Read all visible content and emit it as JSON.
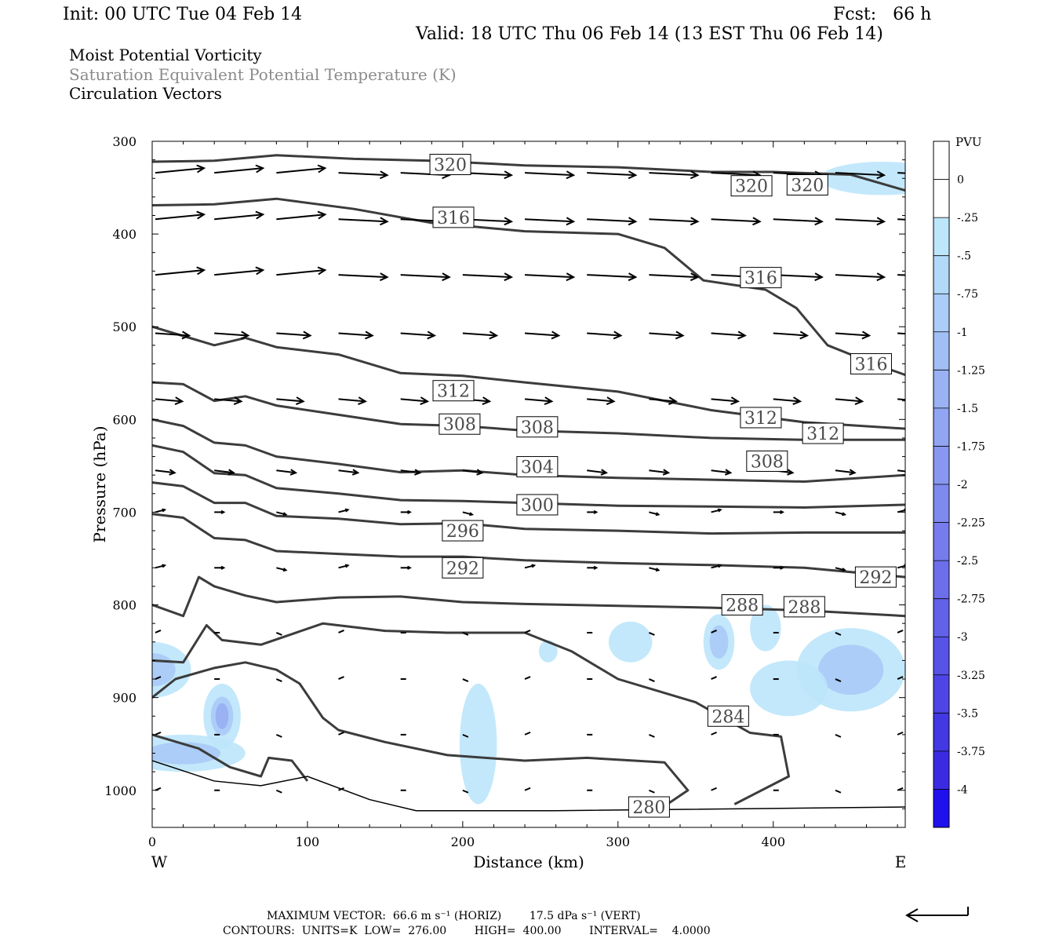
{
  "header": {
    "init": "Init: 00 UTC Tue 04 Feb 14",
    "fcst": "Fcst:   66 h",
    "valid": "Valid: 18 UTC Thu 06 Feb 14 (13 EST Thu 06 Feb 14)"
  },
  "fields": {
    "line1": "Moist Potential Vorticity",
    "line2": "Saturation Equivalent Potential Temperature (K)",
    "line3": "Circulation Vectors"
  },
  "footer": {
    "max_vector": "MAXIMUM VECTOR:  66.6 m s⁻¹ (HORIZ)        17.5 dPa s⁻¹ (VERT)",
    "contours": "CONTOURS:  UNITS=K  LOW=  276.00        HIGH=  400.00        INTERVAL=    4.0000"
  },
  "chart_data": {
    "type": "cross-section",
    "xlabel": "Distance (km)",
    "ylabel": "Pressure (hPa)",
    "x_ticks": [
      0,
      100,
      200,
      300,
      400
    ],
    "y_ticks": [
      300,
      400,
      500,
      600,
      700,
      800,
      900,
      1000
    ],
    "xlim": [
      0,
      485
    ],
    "ylim": [
      300,
      1040
    ],
    "y_inverted": true,
    "left_label": "W",
    "right_label": "E",
    "colorbar": {
      "unit": "PVU",
      "levels": [
        "0",
        "-.25",
        "-.5",
        "-.75",
        "-1",
        "-1.25",
        "-1.5",
        "-1.75",
        "-2",
        "-2.25",
        "-2.5",
        "-2.75",
        "-3",
        "-3.25",
        "-3.5",
        "-3.75",
        "-4"
      ],
      "colors": [
        "#ffffff",
        "#ffffff",
        "#bde6fb",
        "#b3d9f8",
        "#abcdf7",
        "#a2bff5",
        "#9ab2f4",
        "#91a5f2",
        "#8898f0",
        "#7f8aee",
        "#767cec",
        "#6c6eea",
        "#6261e9",
        "#5853e7",
        "#4e45e6",
        "#4238e4",
        "#3a2be2",
        "#1f10ee"
      ]
    },
    "contours": [
      {
        "label": "320",
        "points": [
          [
            0,
            322
          ],
          [
            40,
            321
          ],
          [
            80,
            315
          ],
          [
            130,
            319
          ],
          [
            180,
            321
          ],
          [
            240,
            326
          ],
          [
            300,
            328
          ],
          [
            360,
            333
          ],
          [
            400,
            333
          ],
          [
            450,
            336
          ],
          [
            485,
            353
          ]
        ],
        "label_pos": [
          [
            192,
            325
          ],
          [
            386,
            348
          ],
          [
            422,
            347
          ]
        ]
      },
      {
        "label": "316",
        "points": [
          [
            0,
            369
          ],
          [
            40,
            368
          ],
          [
            80,
            362
          ],
          [
            130,
            373
          ],
          [
            180,
            388
          ],
          [
            240,
            397
          ],
          [
            300,
            400
          ],
          [
            330,
            415
          ],
          [
            355,
            450
          ],
          [
            375,
            455
          ],
          [
            395,
            460
          ],
          [
            415,
            480
          ],
          [
            435,
            520
          ],
          [
            465,
            540
          ],
          [
            485,
            552
          ]
        ],
        "label_pos": [
          [
            194,
            382
          ],
          [
            392,
            447
          ],
          [
            463,
            540
          ]
        ]
      },
      {
        "label": "312",
        "points": [
          [
            0,
            500
          ],
          [
            20,
            510
          ],
          [
            40,
            520
          ],
          [
            60,
            512
          ],
          [
            80,
            522
          ],
          [
            120,
            530
          ],
          [
            160,
            550
          ],
          [
            200,
            553
          ],
          [
            240,
            560
          ],
          [
            300,
            570
          ],
          [
            360,
            590
          ],
          [
            420,
            603
          ],
          [
            485,
            610
          ]
        ],
        "label_pos": [
          [
            194,
            569
          ],
          [
            392,
            598
          ],
          [
            432,
            615
          ]
        ]
      },
      {
        "label": "308",
        "points": [
          [
            0,
            560
          ],
          [
            20,
            562
          ],
          [
            40,
            580
          ],
          [
            60,
            575
          ],
          [
            80,
            585
          ],
          [
            120,
            595
          ],
          [
            160,
            605
          ],
          [
            200,
            607
          ],
          [
            240,
            612
          ],
          [
            300,
            615
          ],
          [
            360,
            620
          ],
          [
            420,
            622
          ],
          [
            485,
            622
          ]
        ],
        "label_pos": [
          [
            198,
            605
          ],
          [
            248,
            608
          ],
          [
            396,
            645
          ]
        ]
      },
      {
        "label": "304",
        "points": [
          [
            0,
            600
          ],
          [
            20,
            607
          ],
          [
            40,
            625
          ],
          [
            60,
            628
          ],
          [
            80,
            640
          ],
          [
            120,
            648
          ],
          [
            160,
            657
          ],
          [
            200,
            655
          ],
          [
            240,
            660
          ],
          [
            300,
            663
          ],
          [
            360,
            665
          ],
          [
            420,
            667
          ],
          [
            485,
            660
          ]
        ],
        "label_pos": [
          [
            248,
            651
          ]
        ]
      },
      {
        "label": "300",
        "points": [
          [
            0,
            628
          ],
          [
            20,
            635
          ],
          [
            40,
            658
          ],
          [
            60,
            660
          ],
          [
            80,
            674
          ],
          [
            120,
            680
          ],
          [
            160,
            687
          ],
          [
            200,
            688
          ],
          [
            240,
            690
          ],
          [
            300,
            693
          ],
          [
            360,
            694
          ],
          [
            420,
            695
          ],
          [
            485,
            692
          ]
        ],
        "label_pos": [
          [
            248,
            692
          ]
        ]
      },
      {
        "label": "296",
        "points": [
          [
            0,
            668
          ],
          [
            20,
            672
          ],
          [
            40,
            690
          ],
          [
            60,
            690
          ],
          [
            80,
            704
          ],
          [
            120,
            707
          ],
          [
            160,
            713
          ],
          [
            200,
            712
          ],
          [
            240,
            718
          ],
          [
            300,
            720
          ],
          [
            360,
            723
          ],
          [
            420,
            722
          ],
          [
            485,
            722
          ]
        ],
        "label_pos": [
          [
            200,
            720
          ]
        ]
      },
      {
        "label": "292",
        "points": [
          [
            0,
            702
          ],
          [
            20,
            706
          ],
          [
            40,
            728
          ],
          [
            60,
            730
          ],
          [
            80,
            742
          ],
          [
            120,
            745
          ],
          [
            160,
            748
          ],
          [
            200,
            748
          ],
          [
            240,
            752
          ],
          [
            300,
            755
          ],
          [
            360,
            757
          ],
          [
            420,
            760
          ],
          [
            485,
            770
          ]
        ],
        "label_pos": [
          [
            200,
            760
          ],
          [
            466,
            770
          ]
        ]
      },
      {
        "label": "288",
        "points": [
          [
            0,
            800
          ],
          [
            20,
            812
          ],
          [
            30,
            770
          ],
          [
            40,
            780
          ],
          [
            60,
            790
          ],
          [
            80,
            797
          ],
          [
            120,
            792
          ],
          [
            160,
            791
          ],
          [
            200,
            797
          ],
          [
            240,
            799
          ],
          [
            300,
            801
          ],
          [
            360,
            803
          ],
          [
            420,
            806
          ],
          [
            485,
            812
          ]
        ],
        "label_pos": [
          [
            380,
            800
          ],
          [
            420,
            802
          ]
        ]
      },
      {
        "label": "284",
        "points": [
          [
            0,
            860
          ],
          [
            20,
            862
          ],
          [
            35,
            822
          ],
          [
            45,
            838
          ],
          [
            70,
            843
          ],
          [
            110,
            820
          ],
          [
            150,
            828
          ],
          [
            190,
            830
          ],
          [
            240,
            830
          ],
          [
            270,
            850
          ],
          [
            300,
            880
          ],
          [
            350,
            905
          ],
          [
            385,
            938
          ],
          [
            405,
            942
          ],
          [
            410,
            985
          ],
          [
            375,
            1015
          ]
        ],
        "label_pos": [
          [
            371,
            920
          ]
        ]
      },
      {
        "label": "280",
        "points": [
          [
            0,
            900
          ],
          [
            15,
            880
          ],
          [
            40,
            868
          ],
          [
            60,
            862
          ],
          [
            80,
            870
          ],
          [
            95,
            885
          ],
          [
            110,
            922
          ],
          [
            120,
            935
          ],
          [
            150,
            948
          ],
          [
            190,
            962
          ],
          [
            240,
            968
          ],
          [
            280,
            965
          ],
          [
            330,
            970
          ],
          [
            345,
            1000
          ],
          [
            330,
            1017
          ]
        ],
        "label_pos": [
          [
            320,
            1018
          ]
        ]
      },
      {
        "label": "",
        "points": [
          [
            0,
            940
          ],
          [
            30,
            955
          ],
          [
            50,
            975
          ],
          [
            70,
            985
          ],
          [
            75,
            965
          ],
          [
            90,
            968
          ],
          [
            100,
            990
          ]
        ]
      }
    ],
    "pv_shading": [
      {
        "cx": 45,
        "cy": 920,
        "rx": 12,
        "ry": 35,
        "level": 3
      },
      {
        "cx": 0,
        "cy": 870,
        "rx": 25,
        "ry": 30,
        "level": 2
      },
      {
        "cx": 20,
        "cy": 960,
        "rx": 40,
        "ry": 20,
        "level": 2
      },
      {
        "cx": 210,
        "cy": 950,
        "rx": 12,
        "ry": 65,
        "level": 1
      },
      {
        "cx": 255,
        "cy": 850,
        "rx": 6,
        "ry": 12,
        "level": 1
      },
      {
        "cx": 308,
        "cy": 840,
        "rx": 14,
        "ry": 22,
        "level": 1
      },
      {
        "cx": 365,
        "cy": 840,
        "rx": 10,
        "ry": 30,
        "level": 2
      },
      {
        "cx": 395,
        "cy": 825,
        "rx": 10,
        "ry": 25,
        "level": 1
      },
      {
        "cx": 450,
        "cy": 870,
        "rx": 35,
        "ry": 45,
        "level": 2
      },
      {
        "cx": 410,
        "cy": 890,
        "rx": 25,
        "ry": 30,
        "level": 1
      },
      {
        "cx": 470,
        "cy": 340,
        "rx": 40,
        "ry": 18,
        "level": 1
      }
    ],
    "vectors": {
      "rows": [
        334,
        384,
        444,
        507,
        578,
        655,
        700,
        760,
        830,
        880,
        940,
        1000
      ],
      "xs": [
        0,
        40,
        80,
        120,
        160,
        200,
        240,
        280,
        320,
        360,
        400,
        440,
        480
      ],
      "max_u": 66.6
    }
  }
}
